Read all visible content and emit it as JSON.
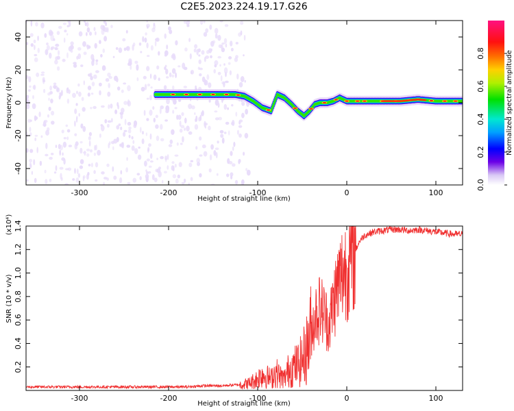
{
  "title": "C2E5.2023.224.19.17.G26",
  "colors": {
    "snr_line": "#f03030",
    "background": "#ffffff",
    "axis": "#000000"
  },
  "chart_data": [
    {
      "type": "heatmap",
      "name": "spectrogram",
      "xlabel": "Height of straight line (km)",
      "ylabel": "Frequency (Hz)",
      "xlim": [
        -360,
        130
      ],
      "ylim": [
        -50,
        50
      ],
      "x_ticks": [
        -300,
        -200,
        -100,
        0,
        100
      ],
      "x_tick_labels": [
        "-300",
        "-200",
        "-100",
        "0",
        "100"
      ],
      "y_ticks": [
        -40,
        -20,
        0,
        20,
        40
      ],
      "y_tick_labels": [
        "-40",
        "-20",
        "0",
        "20",
        "40"
      ],
      "colorbar": {
        "label": "Normalized spectral amplitude",
        "range": [
          0,
          1
        ],
        "ticks": [
          0.0,
          0.2,
          0.4,
          0.6,
          0.8
        ],
        "tick_labels": [
          "0.0",
          "0.2",
          "0.4",
          "0.6",
          "0.8"
        ],
        "colormap": "rainbow"
      },
      "ridge": {
        "x": [
          -215,
          -200,
          -180,
          -160,
          -140,
          -125,
          -115,
          -105,
          -95,
          -85,
          -78,
          -70,
          -62,
          -55,
          -48,
          -42,
          -36,
          -30,
          -22,
          -15,
          -8,
          0,
          20,
          40,
          60,
          80,
          100,
          120,
          130
        ],
        "y": [
          5,
          5,
          5,
          5,
          5,
          5,
          4,
          1,
          -3,
          -5,
          5,
          3,
          -1,
          -5,
          -8,
          -5,
          -1,
          0,
          0,
          1,
          3,
          1,
          1,
          1,
          1,
          2,
          1,
          1,
          1
        ]
      }
    },
    {
      "type": "line",
      "name": "snr",
      "xlabel": "Height of straight line (km)",
      "ylabel": "SNR (10 * v/v)",
      "y_multiplier_label": "(x10⁴)",
      "xlim": [
        -360,
        130
      ],
      "ylim": [
        0,
        1.4
      ],
      "x_ticks": [
        -300,
        -200,
        -100,
        0,
        100
      ],
      "x_tick_labels": [
        "-300",
        "-200",
        "-100",
        "0",
        "100"
      ],
      "y_ticks": [
        0.2,
        0.4,
        0.6,
        0.8,
        1.0,
        1.2,
        1.4
      ],
      "y_tick_labels": [
        "0.2",
        "0.4",
        "0.6",
        "0.8",
        "1.0",
        "1.2",
        "1.4"
      ],
      "series": [
        {
          "x": [
            -360,
            -300,
            -250,
            -200,
            -180,
            -160,
            -140,
            -120,
            -110,
            -100,
            -95,
            -90,
            -85,
            -80,
            -75,
            -70,
            -65,
            -60,
            -55,
            -50,
            -45,
            -40,
            -35,
            -30,
            -25,
            -20,
            -15,
            -10,
            -5,
            0,
            5,
            10,
            15,
            20,
            30,
            40,
            50,
            60,
            70,
            80,
            90,
            100,
            110,
            120,
            130
          ],
          "y": [
            0.03,
            0.03,
            0.03,
            0.03,
            0.03,
            0.04,
            0.04,
            0.05,
            0.06,
            0.1,
            0.14,
            0.12,
            0.1,
            0.16,
            0.12,
            0.1,
            0.18,
            0.2,
            0.22,
            0.26,
            0.35,
            0.5,
            0.65,
            0.7,
            0.65,
            0.55,
            0.75,
            0.9,
            1.0,
            1.05,
            1.1,
            1.2,
            1.28,
            1.32,
            1.35,
            1.36,
            1.37,
            1.37,
            1.36,
            1.37,
            1.36,
            1.35,
            1.34,
            1.33,
            1.33
          ]
        }
      ]
    }
  ]
}
